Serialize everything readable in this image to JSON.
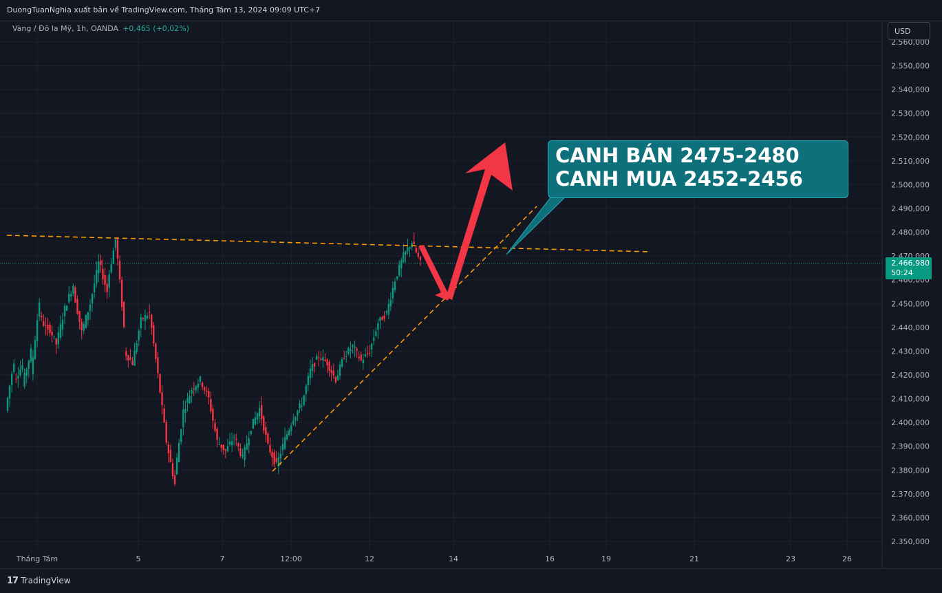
{
  "header": {
    "publication": "DuongTuanNghia xuất bản về TradingView.com, Tháng Tám 13, 2024 09:09 UTC+7"
  },
  "legend": {
    "symbol": "Vàng / Đô la Mỹ, 1h, OANDA",
    "change": "+0,465 (+0,02%)"
  },
  "currency_button": "USD",
  "footer": {
    "brand": "TradingView"
  },
  "price_tag": {
    "price": "2.466,980",
    "countdown": "50:24"
  },
  "annotation": {
    "line1": "CANH BÁN 2475-2480",
    "line2": "CANH MUA 2452-2456"
  },
  "colors": {
    "background": "#131722",
    "up": "#089981",
    "down": "#f23645",
    "trendline": "#ff9800",
    "arrow": "#f23645",
    "callout": "#0e707b"
  },
  "chart_data": {
    "type": "candlestick",
    "ylim": [
      2345,
      2565
    ],
    "y_ticks": [
      "2.350,000",
      "2.360,000",
      "2.370,000",
      "2.380,000",
      "2.390,000",
      "2.400,000",
      "2.410,000",
      "2.420,000",
      "2.430,000",
      "2.440,000",
      "2.450,000",
      "2.460,000",
      "2.470,000",
      "2.480,000",
      "2.490,000",
      "2.500,000",
      "2.510,000",
      "2.520,000",
      "2.530,000",
      "2.540,000",
      "2.550,000",
      "2.560,000"
    ],
    "y_tick_values": [
      2350,
      2360,
      2370,
      2380,
      2390,
      2400,
      2410,
      2420,
      2430,
      2440,
      2450,
      2460,
      2470,
      2480,
      2490,
      2500,
      2510,
      2520,
      2530,
      2540,
      2550,
      2560
    ],
    "x_ticks": [
      "Tháng Tám",
      "5",
      "7",
      "12:00",
      "12",
      "14",
      "16",
      "19",
      "21",
      "23",
      "26"
    ],
    "x_tick_dates": [
      "2024-08-01",
      "2024-08-05",
      "2024-08-07",
      "2024-08-09 12:00",
      "2024-08-12",
      "2024-08-14",
      "2024-08-16",
      "2024-08-19",
      "2024-08-21",
      "2024-08-23",
      "2024-08-26"
    ],
    "last_price": 2466.98,
    "price_path": [
      [
        2405,
        2426
      ],
      [
        2418,
        2424
      ],
      [
        2416,
        2430
      ],
      [
        2420,
        2451
      ],
      [
        2445,
        2438
      ],
      [
        2441,
        2433
      ],
      [
        2433,
        2448
      ],
      [
        2448,
        2458
      ],
      [
        2456,
        2438
      ],
      [
        2438,
        2450
      ],
      [
        2450,
        2467
      ],
      [
        2468,
        2455
      ],
      [
        2458,
        2477
      ],
      [
        2478,
        2440
      ],
      [
        2430,
        2425
      ],
      [
        2425,
        2443
      ],
      [
        2443,
        2446
      ],
      [
        2446,
        2420
      ],
      [
        2420,
        2392
      ],
      [
        2392,
        2374
      ],
      [
        2378,
        2405
      ],
      [
        2405,
        2414
      ],
      [
        2414,
        2418
      ],
      [
        2418,
        2410
      ],
      [
        2410,
        2392
      ],
      [
        2392,
        2388
      ],
      [
        2388,
        2394
      ],
      [
        2394,
        2385
      ],
      [
        2385,
        2398
      ],
      [
        2398,
        2406
      ],
      [
        2406,
        2390
      ],
      [
        2390,
        2382
      ],
      [
        2382,
        2393
      ],
      [
        2393,
        2402
      ],
      [
        2402,
        2408
      ],
      [
        2408,
        2422
      ],
      [
        2422,
        2428
      ],
      [
        2428,
        2425
      ],
      [
        2425,
        2418
      ],
      [
        2418,
        2428
      ],
      [
        2428,
        2432
      ],
      [
        2432,
        2426
      ],
      [
        2426,
        2430
      ],
      [
        2430,
        2442
      ],
      [
        2442,
        2446
      ],
      [
        2446,
        2460
      ],
      [
        2460,
        2470
      ],
      [
        2470,
        2476
      ],
      [
        2476,
        2467
      ]
    ],
    "annotations": {
      "resistance_line": {
        "from": [
          "2024-08-01",
          2479
        ],
        "to": [
          "2024-08-20",
          2472
        ]
      },
      "support_line": {
        "from": [
          "2024-08-09",
          2380
        ],
        "to": [
          "2024-08-15",
          2490
        ]
      },
      "arrow_down": {
        "from": 2475,
        "to": 2452
      },
      "arrow_up": {
        "from": 2452,
        "to": 2520
      }
    }
  }
}
